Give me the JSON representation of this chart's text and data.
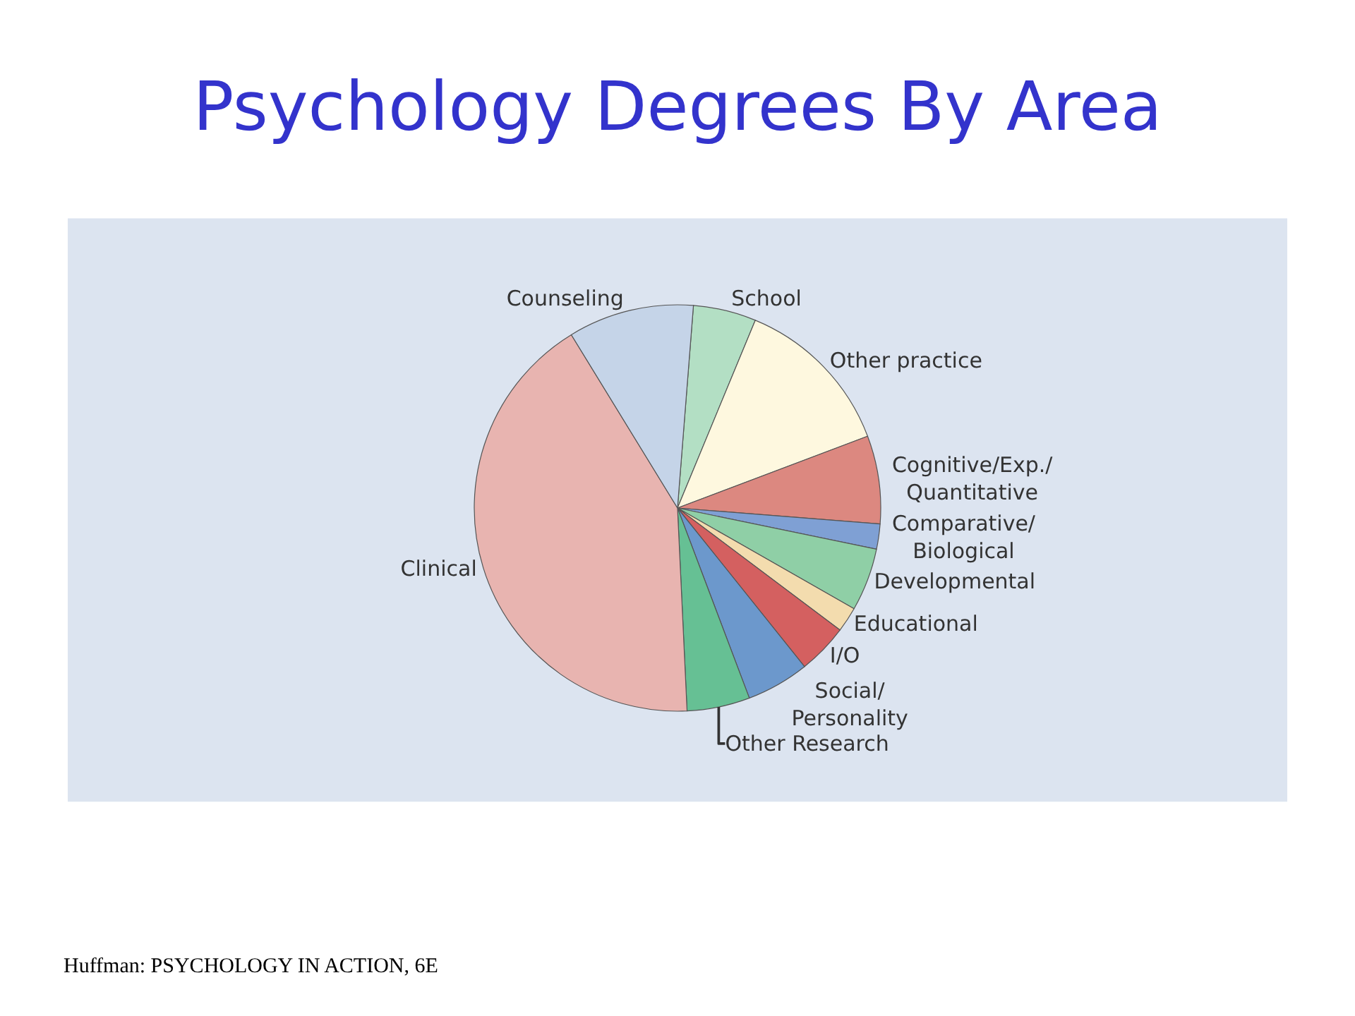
{
  "chart_data": {
    "type": "pie",
    "title": "Psychology Degrees By Area",
    "categories": [
      "School",
      "Other practice",
      "Cognitive/Exp./ Quantitative",
      "Comparative/ Biological",
      "Developmental",
      "Educational",
      "I/O",
      "Social/ Personality",
      "Other Research",
      "Clinical",
      "Counseling"
    ],
    "values": [
      5,
      13,
      7,
      2,
      5,
      2,
      4,
      5,
      5,
      42,
      10
    ],
    "colors": [
      "#b3dfc4",
      "#fef8df",
      "#dc8880",
      "#7fa0d4",
      "#8fcfa6",
      "#f3dcae",
      "#d46060",
      "#6c98cc",
      "#66c094",
      "#e8b4b0",
      "#c5d4e8"
    ],
    "legend": false,
    "annotations": [
      "Huffman: PSYCHOLOGY IN ACTION, 6E"
    ]
  }
}
